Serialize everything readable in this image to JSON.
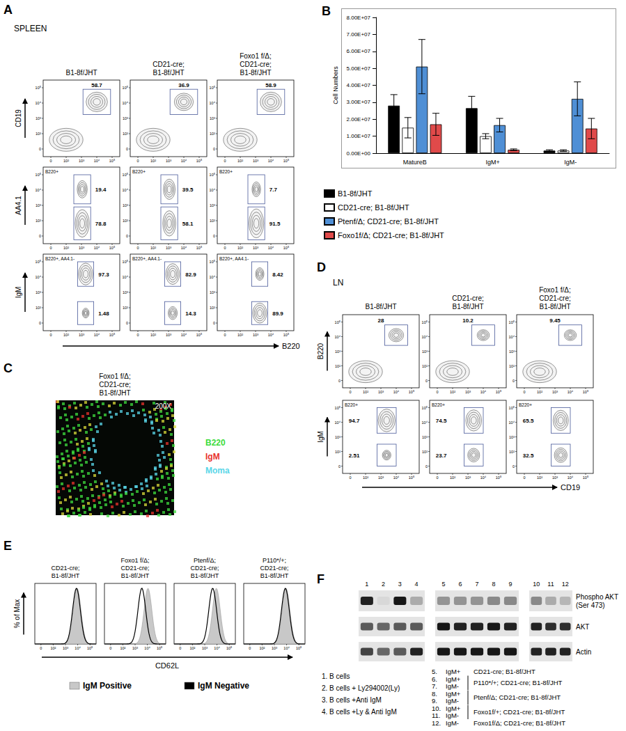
{
  "chart_data": {
    "type": "bar",
    "panel_label": "B",
    "ylabel": "Cell Numbers",
    "categories": [
      "MatureB",
      "IgM+",
      "IgM-"
    ],
    "series": [
      {
        "name": "B1-8f/JHT",
        "color": "#000000",
        "values": [
          28000000,
          26500000,
          1500000
        ],
        "errors": [
          6500000,
          7000000,
          500000
        ]
      },
      {
        "name": "CD21-cre; B1-8f/JHT",
        "color": "#ffffff",
        "values": [
          15000000,
          10000000,
          1500000
        ],
        "errors": [
          6000000,
          1500000,
          500000
        ]
      },
      {
        "name": "Ptenf/Δ; CD21-cre; B1-8f/JHT",
        "color": "#4f8fd5",
        "values": [
          51000000,
          16500000,
          32000000
        ],
        "errors": [
          16000000,
          4000000,
          10000000
        ]
      },
      {
        "name": "Foxo1f/Δ; CD21-cre; B1-8f/JHT",
        "color": "#e04a4a",
        "values": [
          17000000,
          2000000,
          14500000
        ],
        "errors": [
          6500000,
          500000,
          6000000
        ]
      }
    ],
    "ylim": [
      0,
      80000000
    ],
    "yticks": [
      {
        "value": 0,
        "label": "0.00E+00"
      },
      {
        "value": 10000000,
        "label": "1.00E+07"
      },
      {
        "value": 20000000,
        "label": "2.00E+07"
      },
      {
        "value": 30000000,
        "label": "3.00E+07"
      },
      {
        "value": 40000000,
        "label": "4.00E+07"
      },
      {
        "value": 50000000,
        "label": "5.00E+07"
      },
      {
        "value": 60000000,
        "label": "6.00E+07"
      },
      {
        "value": 70000000,
        "label": "7.00E+07"
      },
      {
        "value": 80000000,
        "label": "8.00E+07"
      }
    ],
    "grid": false,
    "legend": "bottom"
  },
  "panels": {
    "A": {
      "label": "A",
      "tissue": "SPLEEN",
      "x_label": "B220",
      "axis_ticks": [
        "0",
        "10²",
        "10³",
        "10⁴",
        "10⁵"
      ],
      "columns": [
        [
          "B1-8f/JHT"
        ],
        [
          "CD21-cre;",
          "B1-8f/JHT"
        ],
        [
          "Foxo1 f/Δ;",
          "CD21-cre;",
          "B1-8f/JHT"
        ]
      ],
      "rows": [
        {
          "y_label": "CD19",
          "gates": [
            [
              58.7
            ],
            [
              36.9
            ],
            [
              58.9
            ]
          ]
        },
        {
          "y_label": "AA4.1",
          "gate_label": "B220+",
          "gates": [
            [
              19.4,
              78.8
            ],
            [
              39.5,
              58.1
            ],
            [
              7.7,
              91.5
            ]
          ]
        },
        {
          "y_label": "IgM",
          "gate_label": "B220+, AA4.1-",
          "gates": [
            [
              97.3,
              1.48
            ],
            [
              82.9,
              14.3
            ],
            [
              8.42,
              89.9
            ]
          ]
        }
      ]
    },
    "C": {
      "label": "C",
      "title": [
        "Foxo1 f/Δ;",
        "CD21-cre;",
        "B1-8f/JHT"
      ],
      "magnification": "200X",
      "stains": [
        {
          "name": "B220",
          "color": "#3ddc3d"
        },
        {
          "name": "IgM",
          "color": "#e8322c"
        },
        {
          "name": "Moma",
          "color": "#5ad6e8"
        }
      ]
    },
    "D": {
      "label": "D",
      "tissue": "LN",
      "x_label": "CD19",
      "axis_ticks": [
        "0",
        "10²",
        "10³",
        "10⁴",
        "10⁵"
      ],
      "columns": [
        [
          "B1-8f/JHT"
        ],
        [
          "CD21-cre;",
          "B1-8f/JHT"
        ],
        [
          "Foxo1 f/Δ;",
          "CD21-cre;",
          "B1-8f/JHT"
        ]
      ],
      "rows": [
        {
          "y_label": "B220",
          "gates": [
            [
              28
            ],
            [
              10.2
            ],
            [
              9.45
            ]
          ]
        },
        {
          "y_label": "IgM",
          "gate_label": "B220+",
          "gates": [
            [
              94.7,
              2.51
            ],
            [
              74.5,
              23.7
            ],
            [
              65.5,
              32.5
            ]
          ]
        }
      ]
    },
    "E": {
      "label": "E",
      "x_label": "CD62L",
      "y_label": "% of Max",
      "axis_ticks": [
        "0",
        "10²",
        "10³",
        "10⁴",
        "10⁵"
      ],
      "columns": [
        [
          "CD21-cre;",
          "B1-8f/JHT"
        ],
        [
          "Foxo1 f/Δ;",
          "CD21-cre;",
          "B1-8f/JHT"
        ],
        [
          "Ptenf/Δ;",
          "CD21-cre;",
          "B1-8f/JHT"
        ],
        [
          "P110*/+;",
          "CD21-cre;",
          "B1-8f/JHT"
        ]
      ],
      "series": [
        {
          "name": "IgM Positive",
          "color": "#c8c8c8",
          "peaks": [
            3.95,
            4.05,
            3.95,
            3.95
          ]
        },
        {
          "name": "IgM Negative",
          "color": "#000000",
          "peaks": [
            3.9,
            3.55,
            3.65,
            3.9
          ]
        }
      ]
    },
    "F": {
      "label": "F",
      "lanes": [
        [
          "1",
          "2",
          "3",
          "4"
        ],
        [
          "5",
          "6",
          "7",
          "8",
          "9"
        ],
        [
          "10",
          "11",
          "12"
        ]
      ],
      "blots": [
        {
          "label": [
            "Phospho AKT",
            "(Ser 473)"
          ],
          "intensity": [
            0.85,
            0.05,
            0.9,
            0.25,
            0.35,
            0.35,
            0.35,
            0.4,
            0.4,
            0.4,
            0.25,
            0.2
          ]
        },
        {
          "label": [
            "AKT"
          ],
          "intensity": [
            0.6,
            0.55,
            0.6,
            0.6,
            0.9,
            0.85,
            0.85,
            0.9,
            0.85,
            0.85,
            0.8,
            0.8
          ]
        },
        {
          "label": [
            "Actin"
          ],
          "intensity": [
            0.7,
            0.55,
            0.6,
            0.85,
            0.9,
            0.9,
            0.9,
            0.9,
            0.9,
            0.85,
            0.85,
            0.85
          ]
        }
      ],
      "key_left": [
        "1.  B cells",
        "2.  B cells + Ly294002(Ly)",
        "3.  B cells +Anti IgM",
        "4.  B cells +Ly & Anti IgM"
      ],
      "key_groups": [
        {
          "rows": [
            {
              "n": "5.",
              "text": "IgM+"
            }
          ],
          "genotype": "CD21-cre; B1-8f/JHT"
        },
        {
          "rows": [
            {
              "n": "6.",
              "text": "IgM+"
            },
            {
              "n": "7.",
              "text": "IgM-"
            }
          ],
          "genotype": "P110*/+; CD21-cre; B1-8f/JHT"
        },
        {
          "rows": [
            {
              "n": "8.",
              "text": "IgM+"
            },
            {
              "n": "9.",
              "text": "IgM-"
            }
          ],
          "genotype": "Ptenf/Δ; CD21-cre; B1-8f/JHT"
        },
        {
          "rows": [
            {
              "n": "10.",
              "text": "IgM+"
            },
            {
              "n": "11.",
              "text": "IgM-"
            }
          ],
          "genotype": "Foxo1f/+; CD21-cre; B1-8f/JHT"
        },
        {
          "rows": [
            {
              "n": "12.",
              "text": "IgM-"
            }
          ],
          "genotype": "Foxo1f/Δ; CD21-cre; B1-8f/JHT"
        }
      ]
    }
  }
}
